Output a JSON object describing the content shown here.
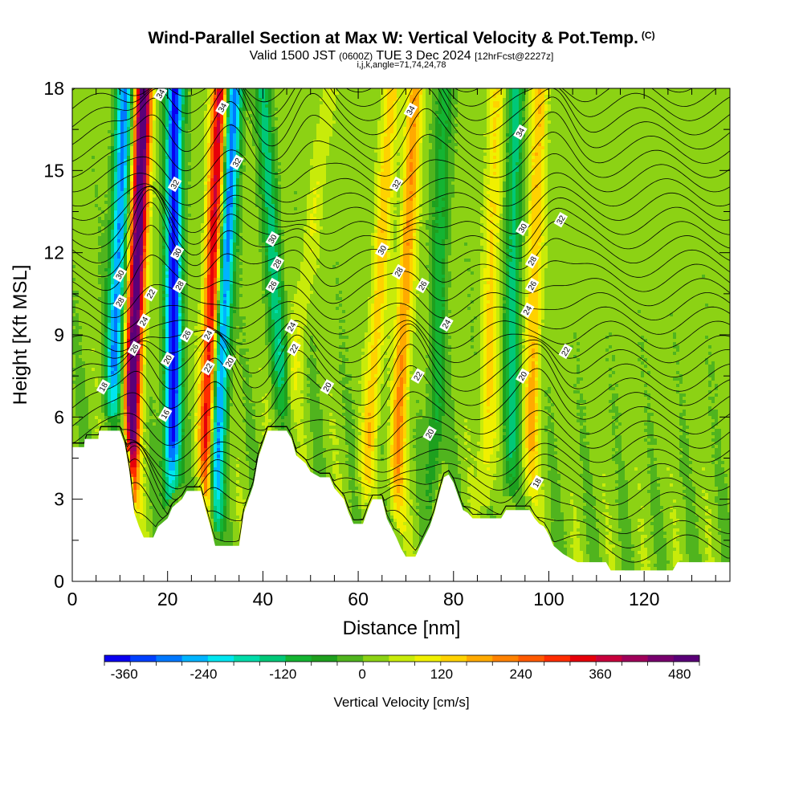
{
  "title": {
    "main": "Wind-Parallel Section at Max W: Vertical Velocity & Pot.Temp.",
    "copyright": "(C)",
    "valid_prefix": "Valid 1500 JST",
    "valid_zulu": "(0600Z)",
    "valid_date": "TUE 3 Dec 2024",
    "forecast": "[12hrFcst@2227z]",
    "ijk": "i,j,k,angle=71,74,24,78"
  },
  "chart_data": {
    "type": "heatmap",
    "xlabel": "Distance [nm]",
    "ylabel": "Height [Kft MSL]",
    "xlim": [
      0,
      138
    ],
    "ylim": [
      0,
      18
    ],
    "x_ticks": [
      0,
      20,
      40,
      60,
      80,
      100,
      120
    ],
    "y_ticks": [
      0,
      3,
      6,
      9,
      12,
      15,
      18
    ],
    "colorbar": {
      "label": "Vertical Velocity [cm/s]",
      "range": [
        -390,
        510
      ],
      "tick_values": [
        -360,
        -240,
        -120,
        0,
        120,
        240,
        360,
        480
      ],
      "tick_labels": [
        "-360",
        "-240",
        "-120",
        "0",
        "120",
        "240",
        "360",
        "480"
      ],
      "colors": [
        "#0a00f0",
        "#0040ff",
        "#0078ff",
        "#00b4ff",
        "#00e6f0",
        "#00dcaa",
        "#00c878",
        "#14b432",
        "#1ea01e",
        "#50b41e",
        "#8cd214",
        "#c8eb0a",
        "#f0f000",
        "#ffd200",
        "#ffaa00",
        "#ff8200",
        "#ff5a00",
        "#ff2d00",
        "#e6000a",
        "#c8003c",
        "#a0005a",
        "#78006e",
        "#5a0078"
      ]
    },
    "updrafts": [
      {
        "x_base": 12,
        "x_top": 15,
        "w": 520
      },
      {
        "x_base": 28,
        "x_top": 31,
        "w": 360
      },
      {
        "x_base": 44,
        "x_top": 54,
        "w": 60
      },
      {
        "x_base": 62,
        "x_top": 67,
        "w": 130
      },
      {
        "x_base": 68,
        "x_top": 72,
        "w": 180
      },
      {
        "x_base": 87,
        "x_top": 89,
        "w": 110
      },
      {
        "x_base": 96,
        "x_top": 98,
        "w": 140
      }
    ],
    "downdrafts": [
      {
        "x_base": 8,
        "x_top": 11,
        "w": -300
      },
      {
        "x_base": 21,
        "x_top": 21.5,
        "w": -390
      },
      {
        "x_base": 30,
        "x_top": 34,
        "w": -330
      },
      {
        "x_base": 45,
        "x_top": 40,
        "w": -150
      },
      {
        "x_base": 76,
        "x_top": 78,
        "w": -110
      },
      {
        "x_base": 92,
        "x_top": 93,
        "w": -150
      }
    ],
    "terrain_kft": [
      [
        0,
        4.9
      ],
      [
        2.5,
        4.9
      ],
      [
        2.6,
        5.2
      ],
      [
        5.5,
        5.2
      ],
      [
        5.6,
        5.5
      ],
      [
        10,
        5.5
      ],
      [
        11,
        5
      ],
      [
        12,
        4
      ],
      [
        13,
        2.5
      ],
      [
        14,
        2
      ],
      [
        15,
        1.6
      ],
      [
        17,
        1.6
      ],
      [
        18,
        2
      ],
      [
        20,
        2.3
      ],
      [
        21,
        2.7
      ],
      [
        23,
        3
      ],
      [
        24,
        3.3
      ],
      [
        27,
        3.3
      ],
      [
        28,
        2.6
      ],
      [
        29,
        2
      ],
      [
        30,
        1.3
      ],
      [
        35,
        1.3
      ],
      [
        36,
        2.5
      ],
      [
        38,
        3.5
      ],
      [
        39,
        4.5
      ],
      [
        41,
        5.5
      ],
      [
        45,
        5.5
      ],
      [
        46,
        5.2
      ],
      [
        47,
        4.6
      ],
      [
        49,
        4.3
      ],
      [
        50,
        4
      ],
      [
        52,
        3.8
      ],
      [
        54,
        3.8
      ],
      [
        55,
        3.4
      ],
      [
        57,
        3
      ],
      [
        58,
        2.5
      ],
      [
        59,
        2.1
      ],
      [
        61,
        2.1
      ],
      [
        62,
        2.6
      ],
      [
        63,
        3
      ],
      [
        65,
        3
      ],
      [
        66,
        2.3
      ],
      [
        68,
        1.6
      ],
      [
        69,
        1.2
      ],
      [
        70,
        0.9
      ],
      [
        72,
        0.9
      ],
      [
        73,
        1.3
      ],
      [
        75,
        2
      ],
      [
        76,
        2.5
      ],
      [
        77,
        3.2
      ],
      [
        78,
        3.8
      ],
      [
        79,
        3.9
      ],
      [
        80,
        3.6
      ],
      [
        81,
        3.1
      ],
      [
        82,
        2.6
      ],
      [
        83,
        2.5
      ],
      [
        84,
        2.3
      ],
      [
        90,
        2.3
      ],
      [
        91,
        2.6
      ],
      [
        96,
        2.6
      ],
      [
        97,
        2.3
      ],
      [
        98,
        2.1
      ],
      [
        99,
        2
      ],
      [
        100,
        1.7
      ],
      [
        101,
        1.3
      ],
      [
        103,
        1
      ],
      [
        104,
        0.9
      ],
      [
        106,
        0.7
      ],
      [
        112,
        0.7
      ],
      [
        113,
        0.4
      ],
      [
        126,
        0.4
      ],
      [
        127,
        0.7
      ],
      [
        138,
        0.7
      ]
    ],
    "contour_labels": [
      {
        "text": "34",
        "x": 18.5,
        "y": 17.8
      },
      {
        "text": "34",
        "x": 31.5,
        "y": 17.3
      },
      {
        "text": "32",
        "x": 34.5,
        "y": 15.3
      },
      {
        "text": "32",
        "x": 21.5,
        "y": 14.5
      },
      {
        "text": "30",
        "x": 22,
        "y": 12
      },
      {
        "text": "30",
        "x": 10,
        "y": 11.2
      },
      {
        "text": "28",
        "x": 22.5,
        "y": 10.8
      },
      {
        "text": "28",
        "x": 10,
        "y": 10.2
      },
      {
        "text": "26",
        "x": 24,
        "y": 9
      },
      {
        "text": "26",
        "x": 13,
        "y": 8.5
      },
      {
        "text": "24",
        "x": 15,
        "y": 9.5
      },
      {
        "text": "24",
        "x": 28.5,
        "y": 9
      },
      {
        "text": "22",
        "x": 16.5,
        "y": 10.5
      },
      {
        "text": "22",
        "x": 28.5,
        "y": 7.8
      },
      {
        "text": "20",
        "x": 20,
        "y": 8.1
      },
      {
        "text": "20",
        "x": 33,
        "y": 8
      },
      {
        "text": "18",
        "x": 6.5,
        "y": 7.1
      },
      {
        "text": "16",
        "x": 19.5,
        "y": 6.1
      },
      {
        "text": "30",
        "x": 42,
        "y": 12.5
      },
      {
        "text": "28",
        "x": 43,
        "y": 11.6
      },
      {
        "text": "26",
        "x": 42,
        "y": 10.8
      },
      {
        "text": "24",
        "x": 46,
        "y": 9.3
      },
      {
        "text": "22",
        "x": 46.5,
        "y": 8.5
      },
      {
        "text": "20",
        "x": 53.5,
        "y": 7.1
      },
      {
        "text": "34",
        "x": 71,
        "y": 17.2
      },
      {
        "text": "32",
        "x": 68,
        "y": 14.5
      },
      {
        "text": "30",
        "x": 65,
        "y": 12.1
      },
      {
        "text": "28",
        "x": 68.5,
        "y": 11.3
      },
      {
        "text": "26",
        "x": 73.5,
        "y": 10.8
      },
      {
        "text": "24",
        "x": 78.5,
        "y": 9.4
      },
      {
        "text": "22",
        "x": 72.5,
        "y": 7.5
      },
      {
        "text": "20",
        "x": 75,
        "y": 5.4
      },
      {
        "text": "34",
        "x": 94,
        "y": 16.4
      },
      {
        "text": "32",
        "x": 102.5,
        "y": 13.2
      },
      {
        "text": "30",
        "x": 94.5,
        "y": 12.9
      },
      {
        "text": "28",
        "x": 96.5,
        "y": 11.7
      },
      {
        "text": "26",
        "x": 96.5,
        "y": 10.8
      },
      {
        "text": "24",
        "x": 95.5,
        "y": 9.9
      },
      {
        "text": "22",
        "x": 103.5,
        "y": 8.4
      },
      {
        "text": "20",
        "x": 94.5,
        "y": 7.5
      },
      {
        "text": "18",
        "x": 97.5,
        "y": 3.6
      }
    ]
  }
}
